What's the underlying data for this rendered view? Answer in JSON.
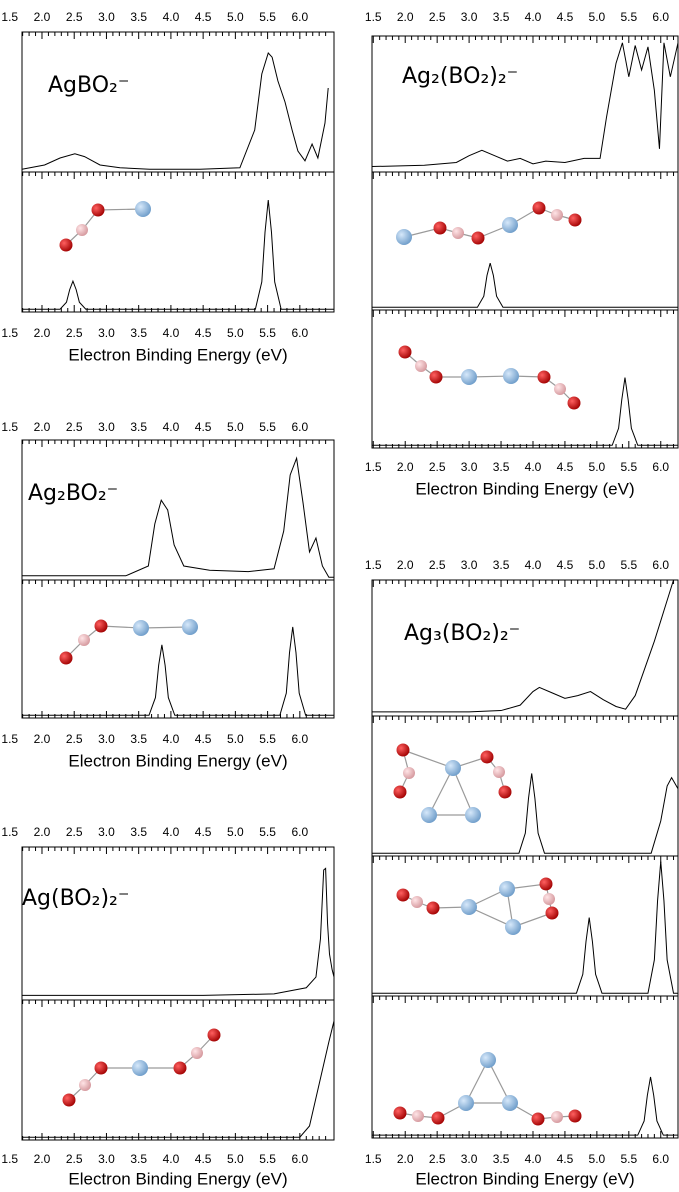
{
  "chart_data": [
    {
      "type": "line",
      "xlim": [
        1.69,
        6.53
      ],
      "xticks": [
        1.5,
        {
          "value": 2,
          "label": "2.0"
        },
        2.5,
        {
          "value": 3,
          "label": "3.0"
        },
        3.5,
        {
          "value": 4,
          "label": "4.0"
        },
        4.5,
        {
          "value": 5,
          "label": "5.0"
        },
        5.5,
        {
          "value": 6,
          "label": "6.0"
        }
      ],
      "xlabel": "Electron Binding Energy (eV)",
      "panels": [
        {
          "label": "AgBO₂⁻",
          "ylim": [
            0,
            1
          ],
          "color": "#000000",
          "x": [
            1.69,
            2.04,
            2.28,
            2.51,
            2.66,
            2.9,
            3.21,
            3.67,
            4.45,
            5.07,
            5.3,
            5.41,
            5.51,
            5.57,
            5.66,
            5.77,
            5.88,
            5.97,
            6.08,
            6.19,
            6.28,
            6.39,
            6.44
          ],
          "values": [
            0.02,
            0.05,
            0.1,
            0.13,
            0.11,
            0.05,
            0.03,
            0.02,
            0.02,
            0.03,
            0.3,
            0.7,
            0.85,
            0.82,
            0.65,
            0.5,
            0.3,
            0.15,
            0.08,
            0.2,
            0.1,
            0.35,
            0.6
          ]
        },
        {
          "ylim": [
            0,
            1
          ],
          "color": "#000000",
          "x": [
            1.69,
            2.28,
            2.38,
            2.43,
            2.48,
            2.53,
            2.58,
            2.68,
            5.31,
            5.41,
            5.46,
            5.51,
            5.56,
            5.61,
            5.71,
            6.53
          ],
          "values": [
            0.02,
            0.02,
            0.07,
            0.16,
            0.22,
            0.16,
            0.07,
            0.02,
            0.02,
            0.215,
            0.57,
            0.8,
            0.57,
            0.215,
            0.02,
            0.02
          ]
        }
      ]
    },
    {
      "type": "line",
      "xlim": [
        1.69,
        6.53
      ],
      "xticks": [
        1.5,
        {
          "value": 2,
          "label": "2.0"
        },
        2.5,
        {
          "value": 3,
          "label": "3.0"
        },
        3.5,
        {
          "value": 4,
          "label": "4.0"
        },
        4.5,
        {
          "value": 5,
          "label": "5.0"
        },
        5.5,
        {
          "value": 6,
          "label": "6.0"
        }
      ],
      "xlabel": "Electron Binding Energy (eV)",
      "panels": [
        {
          "label": "Ag₂BO₂⁻",
          "ylim": [
            0,
            1
          ],
          "color": "#000000",
          "x": [
            1.69,
            3.3,
            3.65,
            3.75,
            3.85,
            3.95,
            4.05,
            4.2,
            4.6,
            5.2,
            5.6,
            5.75,
            5.85,
            5.95,
            6.05,
            6.15,
            6.25,
            6.35,
            6.45,
            6.53
          ],
          "values": [
            0.03,
            0.03,
            0.1,
            0.4,
            0.57,
            0.5,
            0.25,
            0.1,
            0.07,
            0.06,
            0.08,
            0.35,
            0.75,
            0.87,
            0.55,
            0.2,
            0.3,
            0.1,
            0.02,
            0.02
          ]
        },
        {
          "ylim": [
            0,
            1
          ],
          "color": "#000000",
          "x": [
            1.69,
            3.66,
            3.76,
            3.81,
            3.86,
            3.91,
            3.96,
            4.06,
            5.69,
            5.79,
            5.84,
            5.89,
            5.94,
            5.99,
            6.09,
            6.53
          ],
          "values": [
            0.02,
            0.02,
            0.148,
            0.382,
            0.53,
            0.382,
            0.148,
            0.02,
            0.02,
            0.18,
            0.474,
            0.66,
            0.474,
            0.18,
            0.02,
            0.02
          ]
        }
      ]
    },
    {
      "type": "line",
      "xlim": [
        1.69,
        6.53
      ],
      "xticks": [
        1.5,
        {
          "value": 2,
          "label": "2.0"
        },
        2.5,
        {
          "value": 3,
          "label": "3.0"
        },
        3.5,
        {
          "value": 4,
          "label": "4.0"
        },
        4.5,
        {
          "value": 5,
          "label": "5.0"
        },
        5.5,
        {
          "value": 6,
          "label": "6.0"
        }
      ],
      "xlabel": "Electron Binding Energy (eV)",
      "panels": [
        {
          "label": "Ag(BO₂)₂⁻",
          "ylim": [
            0,
            1
          ],
          "color": "#000000",
          "x": [
            1.69,
            4.5,
            5.6,
            6.1,
            6.25,
            6.32,
            6.37,
            6.4,
            6.43,
            6.46,
            6.5,
            6.53
          ],
          "values": [
            0.03,
            0.03,
            0.04,
            0.08,
            0.15,
            0.4,
            0.85,
            0.86,
            0.5,
            0.3,
            0.2,
            0.15
          ]
        },
        {
          "ylim": [
            0,
            1
          ],
          "color": "#000000",
          "x": [
            1.69,
            6.0,
            6.15,
            6.3,
            6.45,
            6.53
          ],
          "values": [
            0.02,
            0.02,
            0.1,
            0.4,
            0.7,
            0.85
          ]
        }
      ]
    },
    {
      "type": "line",
      "xlim": [
        1.48,
        6.27
      ],
      "xticks": [
        1.5,
        {
          "value": 2,
          "label": "2.0"
        },
        2.5,
        {
          "value": 3,
          "label": "3.0"
        },
        3.5,
        {
          "value": 4,
          "label": "4.0"
        },
        4.5,
        {
          "value": 5,
          "label": "5.0"
        },
        5.5,
        {
          "value": 6,
          "label": "6.0"
        }
      ],
      "xlabel": "Electron Binding Energy (eV)",
      "panels": [
        {
          "label": "Ag₂(BO₂)₂⁻",
          "ylim": [
            0,
            1
          ],
          "color": "#000000",
          "x": [
            1.48,
            2.3,
            2.8,
            3.0,
            3.2,
            3.4,
            3.6,
            3.8,
            4.0,
            4.2,
            4.5,
            4.8,
            5.05,
            5.15,
            5.3,
            5.4,
            5.5,
            5.6,
            5.7,
            5.8,
            5.9,
            5.98,
            6.05,
            6.15,
            6.27
          ],
          "values": [
            0.04,
            0.05,
            0.07,
            0.12,
            0.16,
            0.12,
            0.08,
            0.1,
            0.06,
            0.08,
            0.07,
            0.1,
            0.1,
            0.4,
            0.8,
            0.95,
            0.7,
            0.93,
            0.75,
            0.92,
            0.6,
            0.17,
            0.95,
            0.7,
            0.95
          ]
        },
        {
          "ylim": [
            0,
            1
          ],
          "color": "#000000",
          "x": [
            1.48,
            3.13,
            3.23,
            3.28,
            3.33,
            3.38,
            3.43,
            3.53,
            6.27
          ],
          "values": [
            0.02,
            0.02,
            0.1,
            0.25,
            0.34,
            0.25,
            0.1,
            0.02,
            0.02
          ]
        },
        {
          "ylim": [
            0,
            1
          ],
          "color": "#000000",
          "x": [
            1.48,
            5.24,
            5.34,
            5.39,
            5.44,
            5.49,
            5.54,
            5.64,
            6.27
          ],
          "values": [
            0.02,
            0.02,
            0.143,
            0.35,
            0.51,
            0.35,
            0.143,
            0.02,
            0.02
          ]
        }
      ]
    },
    {
      "type": "line",
      "xlim": [
        1.48,
        6.27
      ],
      "xticks": [
        1.5,
        {
          "value": 2,
          "label": "2.0"
        },
        2.5,
        {
          "value": 3,
          "label": "3.0"
        },
        3.5,
        {
          "value": 4,
          "label": "4.0"
        },
        4.5,
        {
          "value": 5,
          "label": "5.0"
        },
        5.5,
        {
          "value": 6,
          "label": "6.0"
        }
      ],
      "xlabel": "Electron Binding Energy (eV)",
      "panels": [
        {
          "label": "Ag₃(BO₂)₂⁻",
          "ylim": [
            0,
            1
          ],
          "color": "#000000",
          "x": [
            1.48,
            3.0,
            3.5,
            3.8,
            4.0,
            4.1,
            4.3,
            4.5,
            4.7,
            4.9,
            5.1,
            5.3,
            5.45,
            5.6,
            5.75,
            5.9,
            6.0,
            6.1,
            6.2,
            6.27
          ],
          "values": [
            0.03,
            0.03,
            0.04,
            0.08,
            0.18,
            0.21,
            0.17,
            0.13,
            0.15,
            0.18,
            0.12,
            0.07,
            0.05,
            0.15,
            0.35,
            0.55,
            0.7,
            0.85,
            1.0,
            1.0
          ]
        },
        {
          "ylim": [
            0,
            1
          ],
          "color": "#000000",
          "x": [
            1.48,
            3.78,
            3.88,
            3.93,
            3.98,
            4.03,
            4.08,
            4.18,
            5.85,
            6.0,
            6.1,
            6.17,
            6.27
          ],
          "values": [
            0.02,
            0.02,
            0.163,
            0.412,
            0.59,
            0.412,
            0.163,
            0.02,
            0.02,
            0.25,
            0.5,
            0.56,
            0.48
          ]
        },
        {
          "ylim": [
            0,
            1
          ],
          "color": "#000000",
          "x": [
            1.48,
            4.68,
            4.78,
            4.83,
            4.88,
            4.93,
            4.98,
            5.08,
            5.8,
            5.9,
            5.95,
            6.0,
            6.05,
            6.1,
            6.2,
            6.27
          ],
          "values": [
            0.02,
            0.02,
            0.155,
            0.39,
            0.56,
            0.39,
            0.155,
            0.02,
            0.02,
            0.258,
            0.68,
            0.96,
            0.68,
            0.258,
            0.02,
            0.02
          ]
        },
        {
          "ylim": [
            0,
            1
          ],
          "color": "#000000",
          "x": [
            1.48,
            5.64,
            5.74,
            5.79,
            5.84,
            5.89,
            5.94,
            6.04,
            6.27
          ],
          "values": [
            0.02,
            0.02,
            0.12,
            0.3,
            0.43,
            0.3,
            0.12,
            0.02,
            0.02
          ]
        }
      ]
    }
  ]
}
